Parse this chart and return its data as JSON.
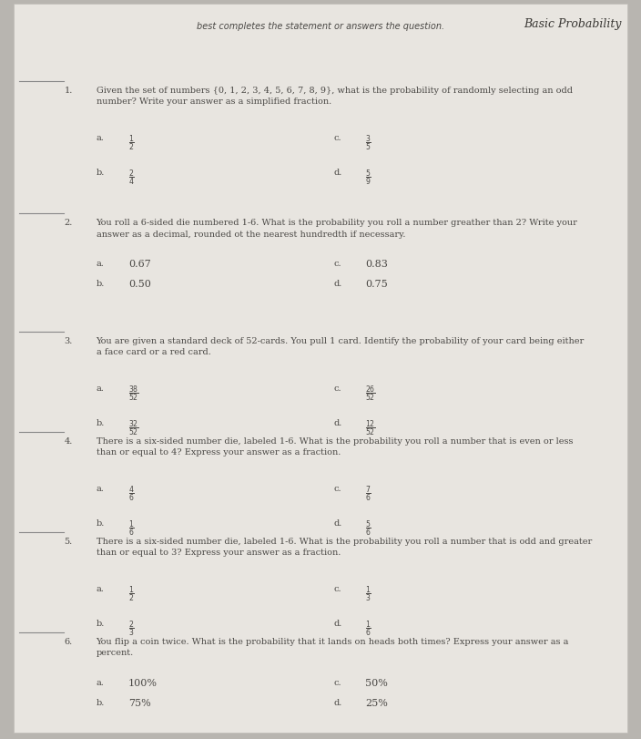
{
  "bg_color": "#b8b5b0",
  "paper_color": "#e8e5e0",
  "title": "Basic Probability",
  "subtitle": "best completes the statement or answers the question.",
  "text_color": "#4a4845",
  "title_color": "#3a3835",
  "fs_title": 9,
  "fs_sub": 7,
  "fs_q": 7,
  "fs_choice_label": 7,
  "fs_choice_text": 8,
  "questions": [
    {
      "number": "1.",
      "line": true,
      "text": "Given the set of numbers {0, 1, 2, 3, 4, 5, 6, 7, 8, 9}, what is the probability of randomly selecting an odd\nnumber? Write your answer as a simplified fraction.",
      "choices": [
        {
          "label": "a.",
          "text": "$\\frac{1}{2}$",
          "col": 0
        },
        {
          "label": "b.",
          "text": "$\\frac{2}{4}$",
          "col": 0
        },
        {
          "label": "c.",
          "text": "$\\frac{3}{5}$",
          "col": 1
        },
        {
          "label": "d.",
          "text": "$\\frac{5}{9}$",
          "col": 1
        }
      ],
      "has_fraction": true
    },
    {
      "number": "2.",
      "line": true,
      "text": "You roll a 6-sided die numbered 1-6. What is the probability you roll a number greather than 2? Write your\nanswer as a decimal, rounded ot the nearest hundredth if necessary.",
      "choices": [
        {
          "label": "a.",
          "text": "0.67",
          "col": 0
        },
        {
          "label": "b.",
          "text": "0.50",
          "col": 0
        },
        {
          "label": "c.",
          "text": "0.83",
          "col": 1
        },
        {
          "label": "d.",
          "text": "0.75",
          "col": 1
        }
      ],
      "has_fraction": false
    },
    {
      "number": "3.",
      "line": true,
      "text": "You are given a standard deck of 52-cards. You pull 1 card. Identify the probability of your card being either\na face card or a red card.",
      "choices": [
        {
          "label": "a.",
          "text": "$\\frac{38}{52}$",
          "col": 0
        },
        {
          "label": "b.",
          "text": "$\\frac{32}{52}$",
          "col": 0
        },
        {
          "label": "c.",
          "text": "$\\frac{26}{52}$",
          "col": 1
        },
        {
          "label": "d.",
          "text": "$\\frac{12}{52}$",
          "col": 1
        }
      ],
      "has_fraction": true
    },
    {
      "number": "4.",
      "line": true,
      "text": "There is a six-sided number die, labeled 1-6. What is the probability you roll a number that is even or less\nthan or equal to 4? Express your answer as a fraction.",
      "choices": [
        {
          "label": "a.",
          "text": "$\\frac{4}{6}$",
          "col": 0
        },
        {
          "label": "b.",
          "text": "$\\frac{1}{6}$",
          "col": 0
        },
        {
          "label": "c.",
          "text": "$\\frac{7}{6}$",
          "col": 1
        },
        {
          "label": "d.",
          "text": "$\\frac{5}{6}$",
          "col": 1
        }
      ],
      "has_fraction": true
    },
    {
      "number": "5.",
      "line": true,
      "text": "There is a six-sided number die, labeled 1-6. What is the probability you roll a number that is odd and greater\nthan or equal to 3? Express your answer as a fraction.",
      "choices": [
        {
          "label": "a.",
          "text": "$\\frac{1}{2}$",
          "col": 0
        },
        {
          "label": "b.",
          "text": "$\\frac{2}{3}$",
          "col": 0
        },
        {
          "label": "c.",
          "text": "$\\frac{1}{3}$",
          "col": 1
        },
        {
          "label": "d.",
          "text": "$\\frac{1}{6}$",
          "col": 1
        }
      ],
      "has_fraction": true
    },
    {
      "number": "6.",
      "line": true,
      "text": "You flip a coin twice. What is the probability that it lands on heads both times? Express your answer as a\npercent.",
      "choices": [
        {
          "label": "a.",
          "text": "100%",
          "col": 0
        },
        {
          "label": "b.",
          "text": "75%",
          "col": 0
        },
        {
          "label": "c.",
          "text": "50%",
          "col": 1
        },
        {
          "label": "d.",
          "text": "25%",
          "col": 1
        }
      ],
      "has_fraction": false
    }
  ]
}
